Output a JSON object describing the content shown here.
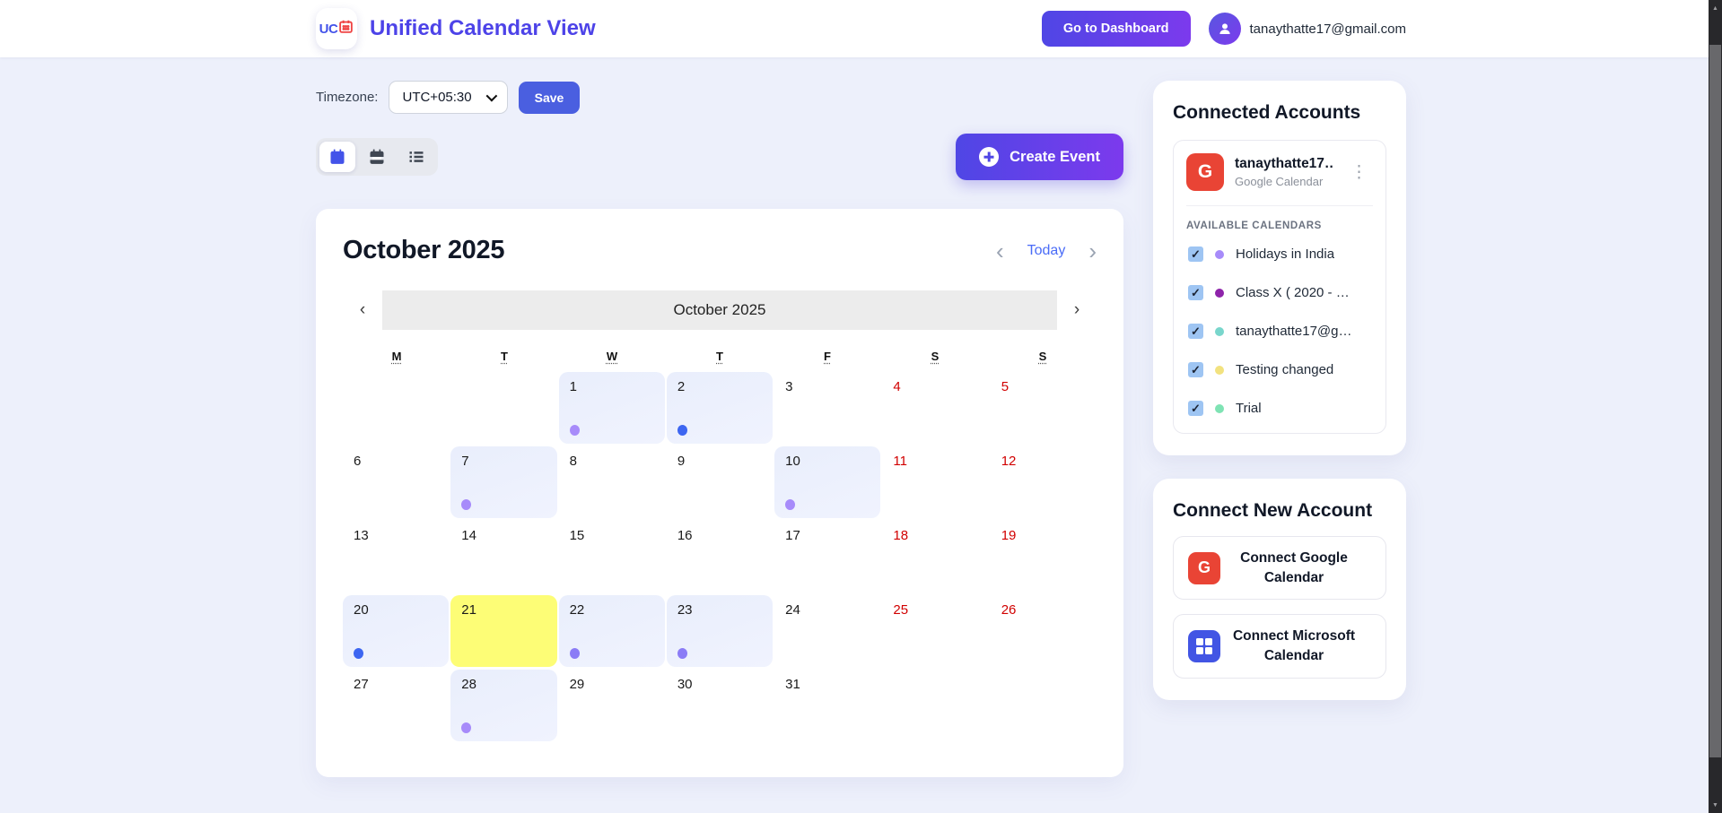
{
  "header": {
    "logo_text": "UC",
    "title": "Unified Calendar View",
    "dashboard_button_label": "Go to Dashboard",
    "user_email": "tanaythatte17@gmail.com"
  },
  "toolbar": {
    "timezone_label": "Timezone:",
    "timezone_selected": "UTC+05:30",
    "save_button_label": "Save",
    "create_event_label": "Create Event"
  },
  "calendar": {
    "header_title": "October 2025",
    "today_button_label": "Today",
    "prev_symbol": "‹",
    "next_symbol": "›",
    "nav_label": "October 2025",
    "weekdays": [
      "M",
      "T",
      "W",
      "T",
      "F",
      "S",
      "S"
    ],
    "today_color": "#fdfd76",
    "highlight_color": "#e9eefc",
    "weekend_color": "#d10000",
    "weeks": [
      [
        {
          "day": ""
        },
        {
          "day": ""
        },
        {
          "day": "1",
          "highlight": true,
          "dot": "#a78bfa"
        },
        {
          "day": "2",
          "highlight": true,
          "dot": "#3d66f1"
        },
        {
          "day": "3"
        },
        {
          "day": "4",
          "weekend": true
        },
        {
          "day": "5",
          "weekend": true
        }
      ],
      [
        {
          "day": "6"
        },
        {
          "day": "7",
          "highlight": true,
          "dot": "#a78bfa"
        },
        {
          "day": "8"
        },
        {
          "day": "9"
        },
        {
          "day": "10",
          "highlight": true,
          "dot": "#a78bfa"
        },
        {
          "day": "11",
          "weekend": true
        },
        {
          "day": "12",
          "weekend": true
        }
      ],
      [
        {
          "day": "13"
        },
        {
          "day": "14"
        },
        {
          "day": "15"
        },
        {
          "day": "16"
        },
        {
          "day": "17"
        },
        {
          "day": "18",
          "weekend": true
        },
        {
          "day": "19",
          "weekend": true
        }
      ],
      [
        {
          "day": "20",
          "highlight": true,
          "dot": "#3d66f1"
        },
        {
          "day": "21",
          "today": true
        },
        {
          "day": "22",
          "highlight": true,
          "dot": "#8b7cf6"
        },
        {
          "day": "23",
          "highlight": true,
          "dot": "#8b7cf6"
        },
        {
          "day": "24"
        },
        {
          "day": "25",
          "weekend": true
        },
        {
          "day": "26",
          "weekend": true
        }
      ],
      [
        {
          "day": "27"
        },
        {
          "day": "28",
          "highlight": true,
          "dot": "#a78bfa"
        },
        {
          "day": "29"
        },
        {
          "day": "30"
        },
        {
          "day": "31"
        },
        {
          "day": ""
        },
        {
          "day": ""
        }
      ]
    ]
  },
  "connected_accounts": {
    "heading": "Connected Accounts",
    "account": {
      "provider_initial": "G",
      "name": "tanaythatte17…",
      "provider": "Google Calendar",
      "menu_icon": "⋮"
    },
    "available_calendars_label": "AVAILABLE CALENDARS",
    "calendars": [
      {
        "label": "Holidays in India",
        "color": "#a78bfa",
        "checked": true
      },
      {
        "label": "Class X ( 2020 - …",
        "color": "#8e24aa",
        "checked": true
      },
      {
        "label": "tanaythatte17@g…",
        "color": "#79d6cc",
        "checked": true
      },
      {
        "label": "Testing changed",
        "color": "#f2e27f",
        "checked": true
      },
      {
        "label": "Trial",
        "color": "#7fe3b4",
        "checked": true
      }
    ]
  },
  "connect_new": {
    "heading": "Connect New Account",
    "google_initial": "G",
    "google_button_label": "Connect Google Calendar",
    "microsoft_button_label": "Connect Microsoft Calendar"
  },
  "colors": {
    "accent_gradient_start": "#4f46e5",
    "accent_gradient_end": "#7c3aed",
    "save_button": "#4a5fe0",
    "google_red": "#e94435",
    "microsoft_blue": "#4255e4",
    "page_background": "#edf0fb"
  }
}
